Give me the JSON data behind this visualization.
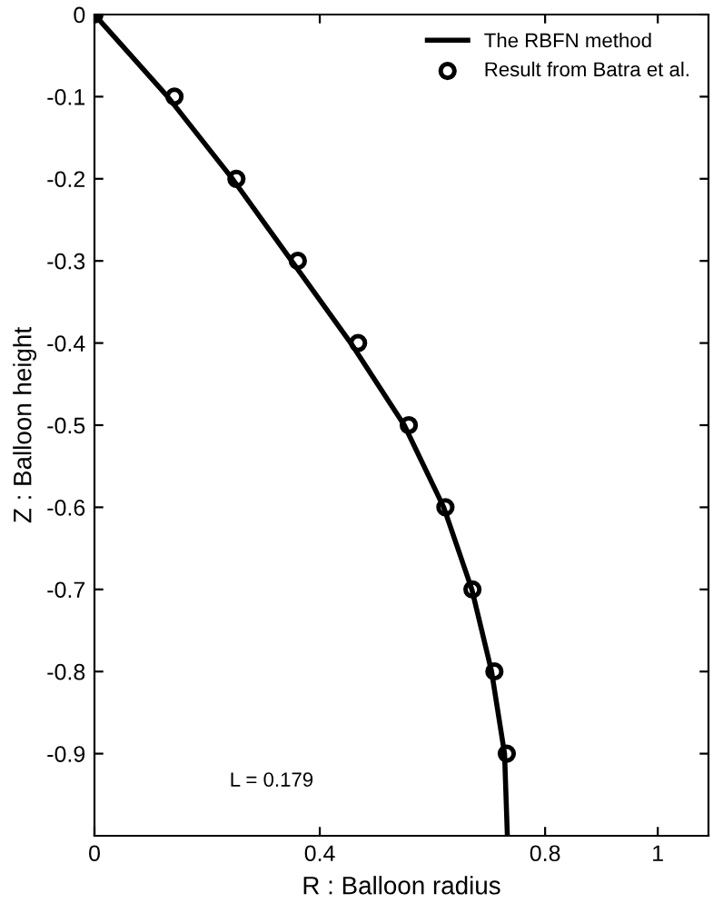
{
  "chart_data": {
    "type": "line",
    "xlabel": "R : Balloon radius",
    "ylabel": "Z : Balloon height",
    "xlim": [
      0,
      1.09
    ],
    "ylim": [
      -1,
      0
    ],
    "xticks": [
      0,
      0.4,
      0.8,
      1
    ],
    "yticks": [
      0,
      -0.1,
      -0.2,
      -0.3,
      -0.4,
      -0.5,
      -0.6,
      -0.7,
      -0.8,
      -0.9
    ],
    "grid": false,
    "legend": "top right",
    "annotations": [
      "L = 0.179"
    ],
    "series": [
      {
        "name": "The RBFN method",
        "color": "#000000",
        "marker": "none",
        "line_style": "solid",
        "x": [
          0,
          0.13,
          0.245,
          0.35,
          0.455,
          0.55,
          0.62,
          0.67,
          0.705,
          0.728,
          0.733
        ],
        "values": [
          0,
          -0.1,
          -0.2,
          -0.3,
          -0.4,
          -0.5,
          -0.6,
          -0.7,
          -0.8,
          -0.9,
          -1.0
        ]
      },
      {
        "name": "Result from Batra et al.",
        "type": "scatter",
        "color": "#000000",
        "marker": "circle",
        "x": [
          0,
          0.142,
          0.252,
          0.361,
          0.468,
          0.558,
          0.623,
          0.671,
          0.71,
          0.732
        ],
        "values": [
          0,
          -0.1,
          -0.2,
          -0.3,
          -0.4,
          -0.5,
          -0.6,
          -0.7,
          -0.8,
          -0.9
        ]
      }
    ]
  }
}
